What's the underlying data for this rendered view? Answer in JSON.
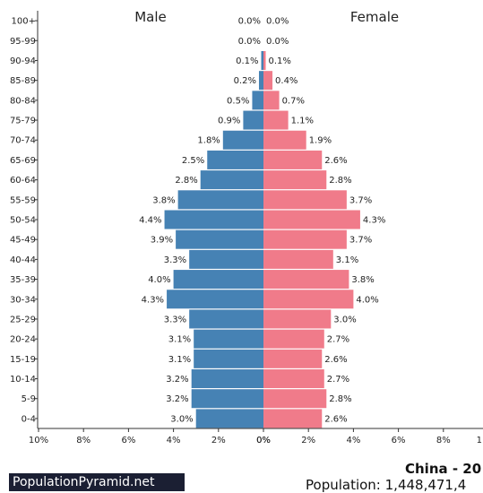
{
  "chart_data": {
    "type": "bar",
    "orientation": "horizontal-population-pyramid",
    "categories": [
      "0-4",
      "5-9",
      "10-14",
      "15-19",
      "20-24",
      "25-29",
      "30-34",
      "35-39",
      "40-44",
      "45-49",
      "50-54",
      "55-59",
      "60-64",
      "65-69",
      "70-74",
      "75-79",
      "80-84",
      "85-89",
      "90-94",
      "95-99",
      "100+"
    ],
    "series": [
      {
        "name": "Male",
        "color": "#4682b4",
        "values": [
          3.0,
          3.2,
          3.2,
          3.1,
          3.1,
          3.3,
          4.3,
          4.0,
          3.3,
          3.9,
          4.4,
          3.8,
          2.8,
          2.5,
          1.8,
          0.9,
          0.5,
          0.2,
          0.1,
          0.0,
          0.0
        ]
      },
      {
        "name": "Female",
        "color": "#f07b8a",
        "values": [
          2.6,
          2.8,
          2.7,
          2.6,
          2.7,
          3.0,
          4.0,
          3.8,
          3.1,
          3.7,
          4.3,
          3.7,
          2.8,
          2.6,
          1.9,
          1.1,
          0.7,
          0.4,
          0.1,
          0.0,
          0.0
        ]
      }
    ],
    "value_labels_male": [
      "3.0%",
      "3.2%",
      "3.2%",
      "3.1%",
      "3.1%",
      "3.3%",
      "4.3%",
      "4.0%",
      "3.3%",
      "3.9%",
      "4.4%",
      "3.8%",
      "2.8%",
      "2.5%",
      "1.8%",
      "0.9%",
      "0.5%",
      "0.2%",
      "0.1%",
      "0.0%",
      "0.0%"
    ],
    "value_labels_female": [
      "2.6%",
      "2.8%",
      "2.7%",
      "2.6%",
      "2.7%",
      "3.0%",
      "4.0%",
      "3.8%",
      "3.1%",
      "3.7%",
      "4.3%",
      "3.7%",
      "2.8%",
      "2.6%",
      "1.9%",
      "1.1%",
      "0.7%",
      "0.4%",
      "0.1%",
      "0.0%",
      "0.0%"
    ],
    "xlim": [
      0,
      10
    ],
    "x_ticks_left": [
      "10%",
      "8%",
      "6%",
      "4%",
      "2%",
      "0%"
    ],
    "x_ticks_right": [
      "0%",
      "2%",
      "4%",
      "6%",
      "8%",
      "1"
    ],
    "grid": false
  },
  "footer": {
    "left_label": "PopulationPyramid.net",
    "title": "China - 20",
    "population_text": "Population: 1,448,471,4"
  }
}
